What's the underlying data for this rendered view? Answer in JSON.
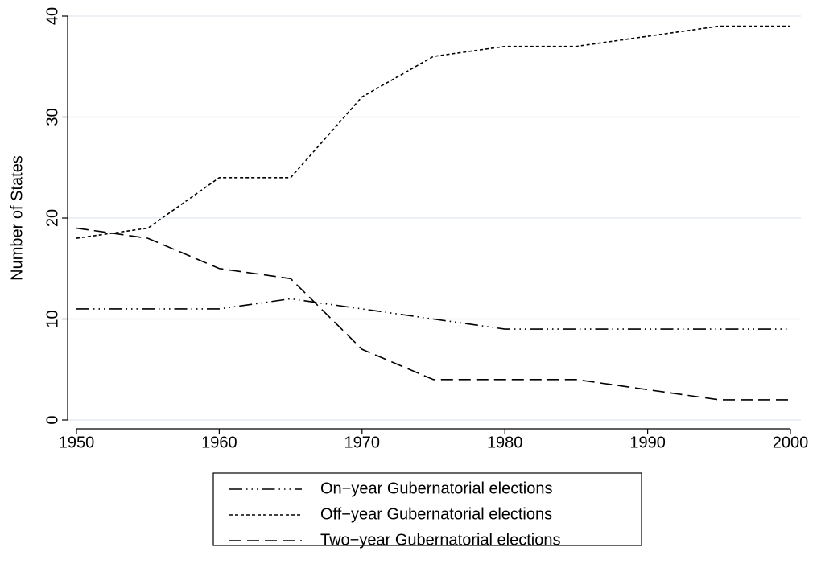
{
  "chart_data": {
    "type": "line",
    "y_label": "Number of States",
    "x": [
      1950,
      1955,
      1960,
      1965,
      1970,
      1975,
      1980,
      1985,
      1990,
      1995,
      2000
    ],
    "series": [
      {
        "name": "On−year Gubernatorial elections",
        "color": "#000000",
        "line_style": "long-dash-dot-dot",
        "values": [
          11,
          11,
          11,
          12,
          11,
          10,
          9,
          9,
          9,
          9,
          9
        ]
      },
      {
        "name": "Off−year Gubernatorial elections",
        "color": "#000000",
        "line_style": "short-dash",
        "values": [
          18,
          19,
          24,
          24,
          32,
          36,
          37,
          37,
          38,
          39,
          39
        ]
      },
      {
        "name": "Two−year Gubernatorial elections",
        "color": "#000000",
        "line_style": "long-dash",
        "values": [
          19,
          18,
          15,
          14,
          7,
          4,
          4,
          4,
          3,
          2,
          2
        ]
      }
    ],
    "xlim": [
      1950,
      2000
    ],
    "xticks": [
      1950,
      1960,
      1970,
      1980,
      1990,
      2000
    ],
    "ylim": [
      0,
      40
    ],
    "yticks": [
      0,
      10,
      20,
      30,
      40
    ],
    "grid": true,
    "legend": "bottom"
  }
}
